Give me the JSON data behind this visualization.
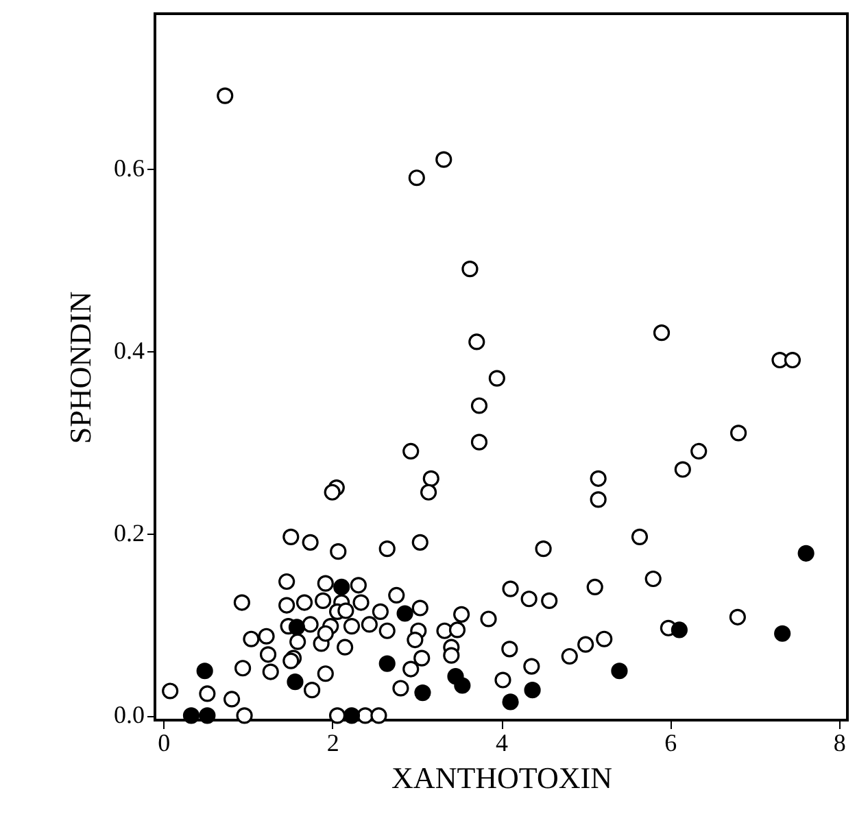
{
  "chart_data": {
    "type": "scatter",
    "xlabel": "XANTHOTOXIN",
    "ylabel": "SPHONDIN",
    "xlim": [
      -0.1,
      8.1
    ],
    "ylim": [
      -0.005,
      0.77
    ],
    "xticks": [
      0,
      2,
      4,
      6,
      8
    ],
    "yticks": [
      {
        "value": 0,
        "label": "0.0"
      },
      0.2,
      0.4,
      0.6
    ],
    "grid": false,
    "marker": "circle",
    "series": [
      {
        "color": "#ffffff",
        "x": [
          0.73,
          3.0,
          3.32,
          3.63,
          3.71,
          5.9,
          7.3,
          7.45,
          3.95,
          3.74,
          3.74,
          2.93,
          6.81,
          6.34,
          6.15,
          3.17,
          5.15,
          2.05,
          2.0,
          3.14,
          5.15,
          1.51,
          1.74,
          2.07,
          2.65,
          3.04,
          1.46,
          1.92,
          2.31,
          2.76,
          0.93,
          1.46,
          1.67,
          1.89,
          2.11,
          2.34,
          2.06,
          2.16,
          2.57,
          3.04,
          3.53,
          3.85,
          1.48,
          1.74,
          1.98,
          2.23,
          2.44,
          2.65,
          3.02,
          3.33,
          3.48,
          1.04,
          1.22,
          1.59,
          1.87,
          2.15,
          2.98,
          3.41,
          1.92,
          1.24,
          1.54,
          3.06,
          3.41,
          0.94,
          1.27,
          1.51,
          1.92,
          2.93,
          1.76,
          2.81,
          0.08,
          0.52,
          0.81,
          0.96,
          2.06,
          2.39,
          2.55,
          5.64,
          4.5,
          4.11,
          4.33,
          4.57,
          5.11,
          5.8,
          6.8,
          5.98,
          4.1,
          4.81,
          5.0,
          5.22,
          4.36,
          4.02
        ],
        "values": [
          0.68,
          0.59,
          0.61,
          0.49,
          0.41,
          0.42,
          0.39,
          0.39,
          0.37,
          0.34,
          0.3,
          0.29,
          0.31,
          0.29,
          0.27,
          0.26,
          0.26,
          0.25,
          0.245,
          0.245,
          0.237,
          0.196,
          0.19,
          0.18,
          0.183,
          0.19,
          0.147,
          0.145,
          0.143,
          0.132,
          0.124,
          0.121,
          0.124,
          0.126,
          0.124,
          0.124,
          0.114,
          0.115,
          0.114,
          0.118,
          0.111,
          0.106,
          0.098,
          0.1,
          0.098,
          0.098,
          0.1,
          0.093,
          0.093,
          0.093,
          0.094,
          0.084,
          0.087,
          0.081,
          0.079,
          0.075,
          0.083,
          0.075,
          0.09,
          0.067,
          0.063,
          0.063,
          0.066,
          0.052,
          0.048,
          0.06,
          0.046,
          0.051,
          0.028,
          0.03,
          0.027,
          0.024,
          0.018,
          0.0,
          0.0,
          0.0,
          0.0,
          0.196,
          0.183,
          0.139,
          0.128,
          0.126,
          0.141,
          0.15,
          0.108,
          0.096,
          0.073,
          0.065,
          0.078,
          0.084,
          0.054,
          0.039
        ]
      },
      {
        "color": "#000000",
        "x": [
          2.11,
          2.86,
          1.58,
          2.65,
          0.49,
          1.56,
          3.46,
          3.54,
          3.07,
          0.33,
          0.52,
          2.23,
          7.61,
          6.11,
          7.33,
          5.4,
          4.37,
          4.11
        ],
        "values": [
          0.141,
          0.112,
          0.097,
          0.057,
          0.049,
          0.037,
          0.043,
          0.033,
          0.025,
          0.0,
          0.0,
          0.0,
          0.178,
          0.094,
          0.09,
          0.049,
          0.028,
          0.015
        ]
      }
    ]
  }
}
